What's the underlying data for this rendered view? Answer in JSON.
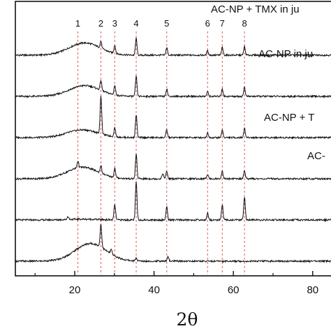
{
  "chart_data": {
    "type": "line",
    "xlabel": "2θ",
    "ylabel": "",
    "xlim": [
      5,
      90
    ],
    "xticks": [
      20,
      40,
      60,
      80
    ],
    "grid": false,
    "peak_labels": [
      {
        "label": "1",
        "x": 20.8
      },
      {
        "label": "2",
        "x": 26.6
      },
      {
        "label": "3",
        "x": 30.1
      },
      {
        "label": "4",
        "x": 35.5
      },
      {
        "label": "5",
        "x": 43.2
      },
      {
        "label": "6",
        "x": 53.5
      },
      {
        "label": "7",
        "x": 57.2
      },
      {
        "label": "8",
        "x": 62.8
      }
    ],
    "series": [
      {
        "name": "AC-NP + TMX in ju",
        "offset": 5,
        "hump": {
          "center": 22.5,
          "height": 1.6
        },
        "peaks": [
          [
            26.6,
            0.9
          ],
          [
            30.1,
            1.1
          ],
          [
            35.5,
            2.2
          ],
          [
            43.2,
            1.0
          ],
          [
            53.5,
            0.6
          ],
          [
            57.2,
            1.0
          ],
          [
            62.8,
            1.1
          ]
        ]
      },
      {
        "name": "AC-NP in ju",
        "offset": 4,
        "hump": {
          "center": 22.5,
          "height": 1.4
        },
        "peaks": [
          [
            26.6,
            1.3
          ],
          [
            30.1,
            1.2
          ],
          [
            35.5,
            2.6
          ],
          [
            43.2,
            1.0
          ],
          [
            53.5,
            0.6
          ],
          [
            57.2,
            1.0
          ],
          [
            62.8,
            1.2
          ]
        ]
      },
      {
        "name": "AC-NP + T",
        "offset": 3,
        "hump": {
          "center": 22.0,
          "height": 1.0
        },
        "peaks": [
          [
            26.6,
            5.0
          ],
          [
            30.1,
            1.2
          ],
          [
            35.5,
            3.0
          ],
          [
            43.2,
            1.0
          ],
          [
            53.5,
            0.6
          ],
          [
            57.2,
            1.0
          ],
          [
            62.8,
            1.2
          ]
        ]
      },
      {
        "name": "AC-",
        "offset": 2,
        "hump": {
          "center": 22.0,
          "height": 1.5
        },
        "peaks": [
          [
            20.8,
            0.9
          ],
          [
            26.6,
            1.0
          ],
          [
            30.1,
            1.2
          ],
          [
            35.5,
            3.2
          ],
          [
            42.2,
            0.7
          ],
          [
            43.2,
            1.0
          ],
          [
            53.5,
            0.6
          ],
          [
            57.2,
            1.0
          ],
          [
            62.8,
            1.1
          ]
        ]
      },
      {
        "name": "",
        "offset": 1,
        "hump": {
          "center": 22.0,
          "height": 0.1
        },
        "peaks": [
          [
            18.3,
            0.4
          ],
          [
            30.1,
            2.0
          ],
          [
            35.5,
            5.0
          ],
          [
            43.2,
            1.7
          ],
          [
            53.5,
            0.9
          ],
          [
            57.2,
            2.0
          ],
          [
            62.8,
            3.0
          ]
        ]
      },
      {
        "name": "",
        "offset": 0,
        "hump": {
          "center": 24.0,
          "height": 2.3
        },
        "peaks": [
          [
            26.6,
            3.0
          ],
          [
            29.2,
            0.6
          ],
          [
            35.5,
            0.4
          ],
          [
            43.5,
            0.6
          ]
        ]
      }
    ]
  }
}
